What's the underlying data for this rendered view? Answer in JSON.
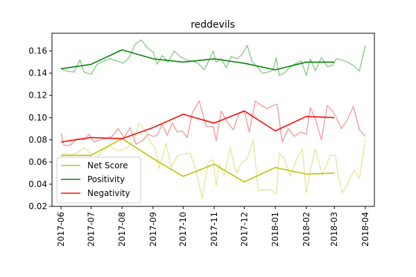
{
  "chart_data": {
    "type": "line",
    "title": "reddevils",
    "xlabel": "",
    "ylabel": "",
    "x_ticks": [
      "2017-06",
      "2017-07",
      "2017-08",
      "2017-09",
      "2017-10",
      "2017-11",
      "2017-12",
      "2018-01",
      "2018-02",
      "2018-03",
      "2018-04"
    ],
    "y_ticks": [
      "0.02",
      "0.04",
      "0.06",
      "0.08",
      "0.10",
      "0.12",
      "0.14",
      "0.16"
    ],
    "ylim": [
      0.02,
      0.176
    ],
    "xlim": [
      "2017-05-23",
      "2018-04-10"
    ],
    "grid": false,
    "legend_position": "lower-left",
    "series": [
      {
        "name": "Net Score",
        "role": "monthly",
        "color": "#bfbf00",
        "x": [
          "2017-06-01",
          "2017-07-01",
          "2017-08-01",
          "2017-09-01",
          "2017-10-01",
          "2017-11-01",
          "2017-12-01",
          "2018-01-01",
          "2018-02-01",
          "2018-03-01"
        ],
        "y": [
          0.066,
          0.066,
          0.081,
          0.063,
          0.047,
          0.058,
          0.042,
          0.055,
          0.049,
          0.05
        ]
      },
      {
        "name": "Positivity",
        "role": "monthly",
        "color": "#008000",
        "x": [
          "2017-06-01",
          "2017-07-01",
          "2017-08-01",
          "2017-09-01",
          "2017-10-01",
          "2017-11-01",
          "2017-12-01",
          "2018-01-01",
          "2018-02-01",
          "2018-03-01"
        ],
        "y": [
          0.144,
          0.148,
          0.161,
          0.153,
          0.15,
          0.153,
          0.149,
          0.143,
          0.15,
          0.15
        ]
      },
      {
        "name": "Negativity",
        "role": "monthly",
        "color": "#ff0000",
        "x": [
          "2017-06-01",
          "2017-07-01",
          "2017-08-01",
          "2017-09-01",
          "2017-10-01",
          "2017-11-01",
          "2017-12-01",
          "2018-01-01",
          "2018-02-01",
          "2018-03-01"
        ],
        "y": [
          0.078,
          0.082,
          0.081,
          0.091,
          0.103,
          0.095,
          0.106,
          0.088,
          0.101,
          0.1
        ]
      },
      {
        "name": "Net Score",
        "role": "raw",
        "color": "#e8e8a0",
        "x": [
          "2017-06-01",
          "2017-06-04",
          "2017-06-10",
          "2017-06-17",
          "2017-06-24",
          "2017-06-29",
          "2017-07-04",
          "2017-07-12",
          "2017-07-20",
          "2017-07-28",
          "2017-08-05",
          "2017-08-12",
          "2017-08-18",
          "2017-08-24",
          "2017-08-29",
          "2017-09-03",
          "2017-09-07",
          "2017-09-14",
          "2017-09-19",
          "2017-09-25",
          "2017-10-01",
          "2017-10-08",
          "2017-10-14",
          "2017-10-20",
          "2017-10-26",
          "2017-10-31",
          "2017-11-03",
          "2017-11-06",
          "2017-11-11",
          "2017-11-17",
          "2017-11-23",
          "2017-11-29",
          "2017-12-04",
          "2017-12-10",
          "2017-12-15",
          "2017-12-20",
          "2017-12-27",
          "2018-01-02",
          "2018-01-05",
          "2018-01-10",
          "2018-01-16",
          "2018-01-22",
          "2018-01-28",
          "2018-02-01",
          "2018-02-04",
          "2018-02-10",
          "2018-02-17",
          "2018-02-25",
          "2018-03-02",
          "2018-03-05",
          "2018-03-09",
          "2018-03-15",
          "2018-03-21",
          "2018-03-26",
          "2018-04-01"
        ],
        "y": [
          0.062,
          0.068,
          0.066,
          0.068,
          0.073,
          0.069,
          0.058,
          0.07,
          0.074,
          0.07,
          0.072,
          0.078,
          0.095,
          0.088,
          0.078,
          0.073,
          0.054,
          0.077,
          0.055,
          0.065,
          0.067,
          0.068,
          0.052,
          0.027,
          0.06,
          0.062,
          0.038,
          0.058,
          0.048,
          0.073,
          0.05,
          0.06,
          0.063,
          0.08,
          0.034,
          0.035,
          0.035,
          0.031,
          0.068,
          0.063,
          0.047,
          0.062,
          0.072,
          0.032,
          0.048,
          0.072,
          0.048,
          0.066,
          0.066,
          0.047,
          0.032,
          0.042,
          0.053,
          0.045,
          0.08
        ]
      },
      {
        "name": "Positivity",
        "role": "raw",
        "color": "#90cc90",
        "x": [
          "2017-06-01",
          "2017-06-06",
          "2017-06-14",
          "2017-06-20",
          "2017-06-24",
          "2017-07-01",
          "2017-07-07",
          "2017-07-14",
          "2017-07-20",
          "2017-07-27",
          "2017-08-02",
          "2017-08-08",
          "2017-08-14",
          "2017-08-20",
          "2017-08-26",
          "2017-09-01",
          "2017-09-05",
          "2017-09-10",
          "2017-09-16",
          "2017-09-22",
          "2017-09-28",
          "2017-10-04",
          "2017-10-10",
          "2017-10-16",
          "2017-10-22",
          "2017-10-27",
          "2017-10-31",
          "2017-11-03",
          "2017-11-08",
          "2017-11-13",
          "2017-11-18",
          "2017-11-24",
          "2017-11-29",
          "2017-12-04",
          "2017-12-09",
          "2017-12-14",
          "2017-12-19",
          "2017-12-25",
          "2017-12-30",
          "2018-01-02",
          "2018-01-05",
          "2018-01-10",
          "2018-01-15",
          "2018-01-20",
          "2018-01-27",
          "2018-02-01",
          "2018-02-05",
          "2018-02-10",
          "2018-02-16",
          "2018-02-22",
          "2018-02-27",
          "2018-03-03",
          "2018-03-08",
          "2018-03-14",
          "2018-03-20",
          "2018-03-26",
          "2018-04-01"
        ],
        "y": [
          0.144,
          0.142,
          0.141,
          0.152,
          0.141,
          0.139,
          0.148,
          0.151,
          0.153,
          0.151,
          0.149,
          0.154,
          0.166,
          0.17,
          0.163,
          0.159,
          0.148,
          0.156,
          0.15,
          0.16,
          0.155,
          0.152,
          0.151,
          0.149,
          0.143,
          0.152,
          0.16,
          0.15,
          0.153,
          0.145,
          0.155,
          0.153,
          0.157,
          0.165,
          0.15,
          0.146,
          0.14,
          0.141,
          0.143,
          0.154,
          0.138,
          0.14,
          0.145,
          0.148,
          0.151,
          0.138,
          0.153,
          0.142,
          0.154,
          0.146,
          0.147,
          0.153,
          0.152,
          0.15,
          0.147,
          0.142,
          0.165
        ]
      },
      {
        "name": "Negativity",
        "role": "raw",
        "color": "#f5a0a0",
        "x": [
          "2017-06-01",
          "2017-06-04",
          "2017-06-10",
          "2017-06-17",
          "2017-06-24",
          "2017-06-29",
          "2017-07-04",
          "2017-07-10",
          "2017-07-16",
          "2017-07-22",
          "2017-07-28",
          "2017-08-03",
          "2017-08-09",
          "2017-08-15",
          "2017-08-21",
          "2017-08-27",
          "2017-09-01",
          "2017-09-05",
          "2017-09-10",
          "2017-09-15",
          "2017-09-20",
          "2017-09-25",
          "2017-09-30",
          "2017-10-05",
          "2017-10-10",
          "2017-10-17",
          "2017-10-24",
          "2017-10-31",
          "2017-11-03",
          "2017-11-08",
          "2017-11-14",
          "2017-11-20",
          "2017-11-26",
          "2017-12-01",
          "2017-12-06",
          "2017-12-12",
          "2017-12-18",
          "2017-12-24",
          "2017-12-30",
          "2018-01-03",
          "2018-01-08",
          "2018-01-14",
          "2018-01-20",
          "2018-01-26",
          "2018-02-01",
          "2018-02-05",
          "2018-02-10",
          "2018-02-16",
          "2018-02-22",
          "2018-02-27",
          "2018-03-03",
          "2018-03-08",
          "2018-03-14",
          "2018-03-20",
          "2018-03-26",
          "2018-04-01"
        ],
        "y": [
          0.086,
          0.075,
          0.075,
          0.081,
          0.08,
          0.085,
          0.078,
          0.08,
          0.081,
          0.083,
          0.09,
          0.082,
          0.091,
          0.076,
          0.079,
          0.085,
          0.083,
          0.084,
          0.094,
          0.084,
          0.095,
          0.087,
          0.088,
          0.082,
          0.104,
          0.115,
          0.092,
          0.092,
          0.079,
          0.106,
          0.096,
          0.089,
          0.104,
          0.106,
          0.087,
          0.115,
          0.111,
          0.108,
          0.111,
          0.112,
          0.078,
          0.09,
          0.083,
          0.087,
          0.085,
          0.109,
          0.099,
          0.08,
          0.111,
          0.106,
          0.1,
          0.09,
          0.098,
          0.11,
          0.089,
          0.083
        ]
      }
    ]
  }
}
